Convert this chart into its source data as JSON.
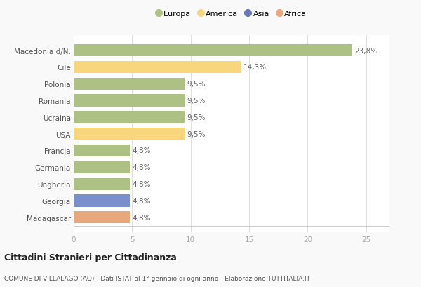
{
  "countries": [
    "Macedonia d/N.",
    "Cile",
    "Polonia",
    "Romania",
    "Ucraina",
    "USA",
    "Francia",
    "Germania",
    "Ungheria",
    "Georgia",
    "Madagascar"
  ],
  "values": [
    23.8,
    14.3,
    9.5,
    9.5,
    9.5,
    9.5,
    4.8,
    4.8,
    4.8,
    4.8,
    4.8
  ],
  "labels": [
    "23,8%",
    "14,3%",
    "9,5%",
    "9,5%",
    "9,5%",
    "9,5%",
    "4,8%",
    "4,8%",
    "4,8%",
    "4,8%",
    "4,8%"
  ],
  "colors": [
    "#aec185",
    "#f7d67e",
    "#aec185",
    "#aec185",
    "#aec185",
    "#f7d67e",
    "#aec185",
    "#aec185",
    "#aec185",
    "#7b8fcc",
    "#e8a87c"
  ],
  "continent_colors": {
    "Europa": "#aec185",
    "America": "#f7d67e",
    "Asia": "#6878b8",
    "Africa": "#e8a87c"
  },
  "legend_labels": [
    "Europa",
    "America",
    "Asia",
    "Africa"
  ],
  "xlim": [
    0,
    27
  ],
  "xticks": [
    0,
    5,
    10,
    15,
    20,
    25
  ],
  "title": "Cittadini Stranieri per Cittadinanza",
  "subtitle": "COMUNE DI VILLALAGO (AQ) - Dati ISTAT al 1° gennaio di ogni anno - Elaborazione TUTTITALIA.IT",
  "background_color": "#f9f9f9",
  "bar_bg_color": "#ffffff",
  "grid_color": "#e0e0e0"
}
